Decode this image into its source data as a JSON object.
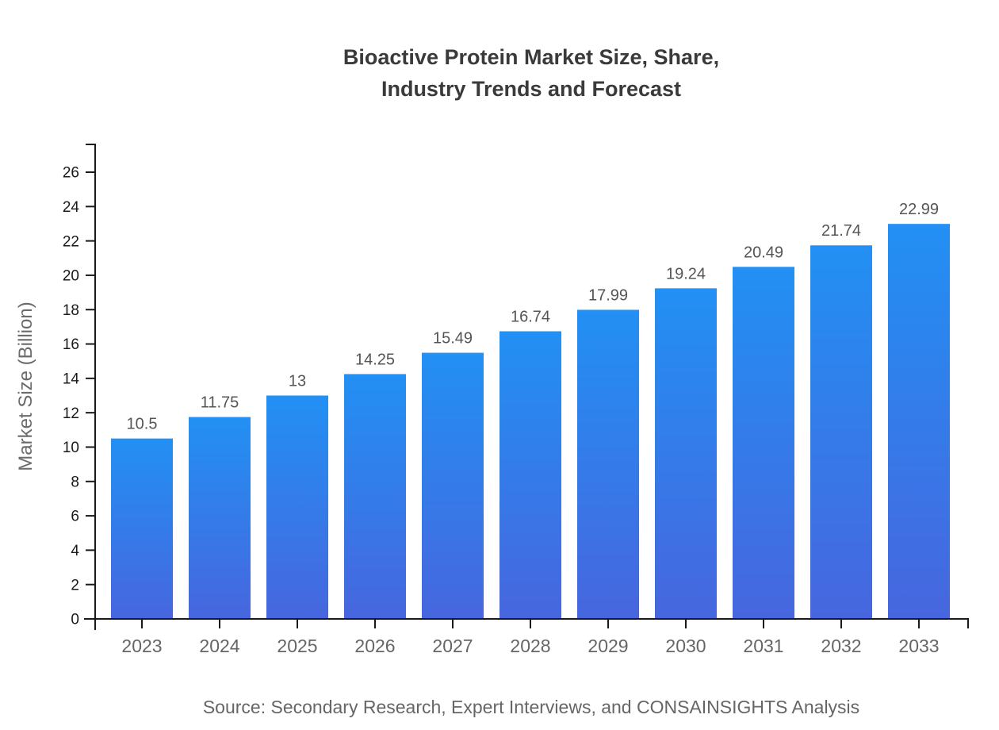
{
  "title": {
    "line1": "Bioactive Protein Market Size, Share,",
    "line2": "Industry Trends and Forecast"
  },
  "source": "Source: Secondary Research, Expert Interviews, and CONSAINSIGHTS Analysis",
  "chart_data": {
    "type": "bar",
    "title": "Bioactive Protein Market Size, Share, Industry Trends and Forecast",
    "categories": [
      "2023",
      "2024",
      "2025",
      "2026",
      "2027",
      "2028",
      "2029",
      "2030",
      "2031",
      "2032",
      "2033"
    ],
    "values": [
      10.5,
      11.75,
      13,
      14.25,
      15.49,
      16.74,
      17.99,
      19.24,
      20.49,
      21.74,
      22.99
    ],
    "value_labels": [
      "10.5",
      "11.75",
      "13",
      "14.25",
      "15.49",
      "16.74",
      "17.99",
      "19.24",
      "20.49",
      "21.74",
      "22.99"
    ],
    "xlabel": "",
    "ylabel": "Market Size (Billion)",
    "ylim": [
      0,
      26
    ],
    "ytick_step": 2,
    "yticks": [
      0,
      2,
      4,
      6,
      8,
      10,
      12,
      14,
      16,
      18,
      20,
      22,
      24,
      26
    ],
    "grid": false,
    "legend": "none",
    "colors": {
      "bar_gradient_top": "#2290F4",
      "bar_gradient_bottom": "#4766DE",
      "axis": "#1a1a1a",
      "ytick_label": "#1a1a1a",
      "xtick_label": "#666666",
      "data_label": "#555555",
      "title": "#3a3a3a",
      "source": "#666666",
      "ylabel": "#6b6b6b"
    }
  }
}
